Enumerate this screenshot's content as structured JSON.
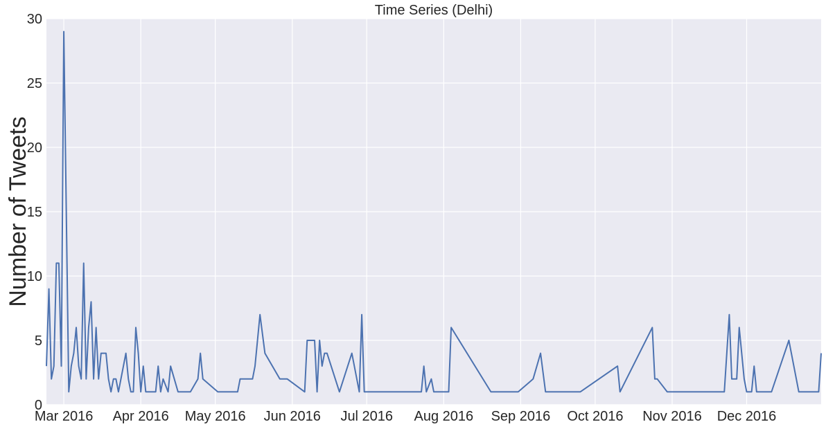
{
  "chart_data": {
    "type": "line",
    "title": "Time Series (Delhi)",
    "xlabel": "",
    "ylabel": "Number of Tweets",
    "ylim": [
      0,
      30
    ],
    "xlim": [
      "2016-02-23",
      "2016-12-31"
    ],
    "grid": true,
    "legend": "none",
    "colors": {
      "background": "#EAEAF2",
      "grid": "#FFFFFF",
      "line": "#4C72B0",
      "text": "#262626"
    },
    "x_ticks": [
      {
        "date": "2016-03-01",
        "label": "Mar 2016"
      },
      {
        "date": "2016-04-01",
        "label": "Apr 2016"
      },
      {
        "date": "2016-05-01",
        "label": "May 2016"
      },
      {
        "date": "2016-06-01",
        "label": "Jun 2016"
      },
      {
        "date": "2016-07-01",
        "label": "Jul 2016"
      },
      {
        "date": "2016-08-01",
        "label": "Aug 2016"
      },
      {
        "date": "2016-09-01",
        "label": "Sep 2016"
      },
      {
        "date": "2016-10-01",
        "label": "Oct 2016"
      },
      {
        "date": "2016-11-01",
        "label": "Nov 2016"
      },
      {
        "date": "2016-12-01",
        "label": "Dec 2016"
      }
    ],
    "y_ticks": [
      0,
      5,
      10,
      15,
      20,
      25,
      30
    ],
    "series": [
      {
        "points": [
          [
            "2016-02-23",
            3
          ],
          [
            "2016-02-24",
            9
          ],
          [
            "2016-02-25",
            2
          ],
          [
            "2016-02-26",
            3
          ],
          [
            "2016-02-27",
            11
          ],
          [
            "2016-02-28",
            11
          ],
          [
            "2016-02-29",
            3
          ],
          [
            "2016-03-01",
            29
          ],
          [
            "2016-03-03",
            1
          ],
          [
            "2016-03-04",
            3
          ],
          [
            "2016-03-05",
            4
          ],
          [
            "2016-03-06",
            6
          ],
          [
            "2016-03-07",
            3
          ],
          [
            "2016-03-08",
            2
          ],
          [
            "2016-03-09",
            11
          ],
          [
            "2016-03-10",
            2
          ],
          [
            "2016-03-11",
            6
          ],
          [
            "2016-03-12",
            8
          ],
          [
            "2016-03-13",
            2
          ],
          [
            "2016-03-14",
            6
          ],
          [
            "2016-03-15",
            2
          ],
          [
            "2016-03-16",
            4
          ],
          [
            "2016-03-18",
            4
          ],
          [
            "2016-03-19",
            2
          ],
          [
            "2016-03-20",
            1
          ],
          [
            "2016-03-21",
            2
          ],
          [
            "2016-03-22",
            2
          ],
          [
            "2016-03-23",
            1
          ],
          [
            "2016-03-26",
            4
          ],
          [
            "2016-03-27",
            2
          ],
          [
            "2016-03-28",
            1
          ],
          [
            "2016-03-29",
            1
          ],
          [
            "2016-03-30",
            6
          ],
          [
            "2016-03-31",
            4
          ],
          [
            "2016-04-01",
            1
          ],
          [
            "2016-04-02",
            3
          ],
          [
            "2016-04-03",
            1
          ],
          [
            "2016-04-07",
            1
          ],
          [
            "2016-04-08",
            3
          ],
          [
            "2016-04-09",
            1
          ],
          [
            "2016-04-10",
            2
          ],
          [
            "2016-04-12",
            1
          ],
          [
            "2016-04-13",
            3
          ],
          [
            "2016-04-16",
            1
          ],
          [
            "2016-04-21",
            1
          ],
          [
            "2016-04-24",
            2
          ],
          [
            "2016-04-25",
            4
          ],
          [
            "2016-04-26",
            2
          ],
          [
            "2016-05-02",
            1
          ],
          [
            "2016-05-10",
            1
          ],
          [
            "2016-05-11",
            2
          ],
          [
            "2016-05-16",
            2
          ],
          [
            "2016-05-17",
            3
          ],
          [
            "2016-05-19",
            7
          ],
          [
            "2016-05-21",
            4
          ],
          [
            "2016-05-27",
            2
          ],
          [
            "2016-05-30",
            2
          ],
          [
            "2016-06-06",
            1
          ],
          [
            "2016-06-07",
            5
          ],
          [
            "2016-06-10",
            5
          ],
          [
            "2016-06-11",
            1
          ],
          [
            "2016-06-12",
            5
          ],
          [
            "2016-06-13",
            3
          ],
          [
            "2016-06-14",
            4
          ],
          [
            "2016-06-15",
            4
          ],
          [
            "2016-06-20",
            1
          ],
          [
            "2016-06-25",
            4
          ],
          [
            "2016-06-28",
            1
          ],
          [
            "2016-06-29",
            7
          ],
          [
            "2016-06-30",
            1
          ],
          [
            "2016-07-23",
            1
          ],
          [
            "2016-07-24",
            3
          ],
          [
            "2016-07-25",
            1
          ],
          [
            "2016-07-27",
            2
          ],
          [
            "2016-07-28",
            1
          ],
          [
            "2016-08-03",
            1
          ],
          [
            "2016-08-04",
            6
          ],
          [
            "2016-08-20",
            1
          ],
          [
            "2016-08-31",
            1
          ],
          [
            "2016-09-06",
            2
          ],
          [
            "2016-09-09",
            4
          ],
          [
            "2016-09-11",
            1
          ],
          [
            "2016-09-25",
            1
          ],
          [
            "2016-10-10",
            3
          ],
          [
            "2016-10-11",
            1
          ],
          [
            "2016-10-24",
            6
          ],
          [
            "2016-10-25",
            2
          ],
          [
            "2016-10-26",
            2
          ],
          [
            "2016-10-30",
            1
          ],
          [
            "2016-11-22",
            1
          ],
          [
            "2016-11-24",
            7
          ],
          [
            "2016-11-25",
            2
          ],
          [
            "2016-11-27",
            2
          ],
          [
            "2016-11-28",
            6
          ],
          [
            "2016-11-30",
            2
          ],
          [
            "2016-12-01",
            1
          ],
          [
            "2016-12-03",
            1
          ],
          [
            "2016-12-04",
            3
          ],
          [
            "2016-12-05",
            1
          ],
          [
            "2016-12-11",
            1
          ],
          [
            "2016-12-18",
            5
          ],
          [
            "2016-12-22",
            1
          ],
          [
            "2016-12-30",
            1
          ],
          [
            "2016-12-31",
            4
          ]
        ]
      }
    ]
  }
}
